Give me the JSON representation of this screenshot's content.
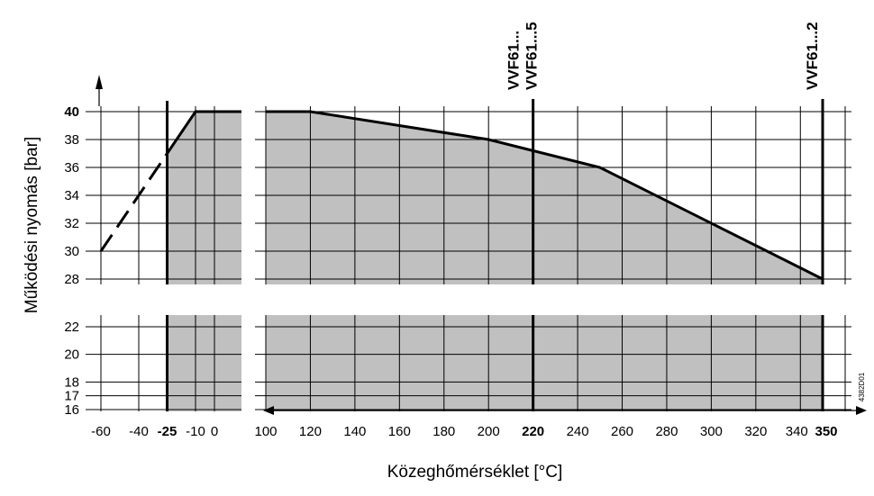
{
  "chart_data": {
    "type": "area",
    "xlabel": "Közeghőmérséklet [°C]",
    "ylabel": "Működési nyomás [bar]",
    "code": "4382D01",
    "colors": {
      "fill": "#c0c0c0",
      "line": "#000000",
      "grid": "#000000"
    },
    "grid": true,
    "left_panel": {
      "xlim": [
        -60,
        0
      ],
      "x_ticks": [
        {
          "value": -60,
          "label": "-60",
          "bold": false
        },
        {
          "value": -40,
          "label": "-40",
          "bold": false
        },
        {
          "value": -25,
          "label": "-25",
          "bold": true
        },
        {
          "value": -10,
          "label": "-10",
          "bold": false
        },
        {
          "value": 0,
          "label": "0",
          "bold": false
        }
      ],
      "shaded_from": -25,
      "dashed_line": [
        [
          -60,
          30
        ],
        [
          -25,
          37
        ]
      ],
      "solid_line": [
        [
          -25,
          37
        ],
        [
          -10,
          40
        ],
        [
          0,
          40
        ]
      ]
    },
    "right_panel": {
      "xlim": [
        100,
        350
      ],
      "x_ticks": [
        {
          "value": 100,
          "label": "100",
          "bold": false
        },
        {
          "value": 120,
          "label": "120",
          "bold": false
        },
        {
          "value": 140,
          "label": "140",
          "bold": false
        },
        {
          "value": 160,
          "label": "160",
          "bold": false
        },
        {
          "value": 180,
          "label": "180",
          "bold": false
        },
        {
          "value": 200,
          "label": "200",
          "bold": false
        },
        {
          "value": 220,
          "label": "220",
          "bold": true
        },
        {
          "value": 240,
          "label": "240",
          "bold": false
        },
        {
          "value": 260,
          "label": "260",
          "bold": false
        },
        {
          "value": 280,
          "label": "280",
          "bold": false
        },
        {
          "value": 300,
          "label": "300",
          "bold": false
        },
        {
          "value": 320,
          "label": "320",
          "bold": false
        },
        {
          "value": 340,
          "label": "340",
          "bold": false
        },
        {
          "value": 350,
          "label": "350",
          "bold": true
        }
      ],
      "line": [
        [
          100,
          40
        ],
        [
          120,
          40
        ],
        [
          200,
          38
        ],
        [
          250,
          36
        ],
        [
          350,
          28
        ]
      ]
    },
    "upper_ylim": [
      28,
      40
    ],
    "upper_y_ticks": [
      {
        "value": 28,
        "label": "28",
        "bold": false
      },
      {
        "value": 30,
        "label": "30",
        "bold": false
      },
      {
        "value": 32,
        "label": "32",
        "bold": false
      },
      {
        "value": 34,
        "label": "34",
        "bold": false
      },
      {
        "value": 36,
        "label": "36",
        "bold": false
      },
      {
        "value": 38,
        "label": "38",
        "bold": false
      },
      {
        "value": 40,
        "label": "40",
        "bold": true
      }
    ],
    "lower_ylim": [
      16,
      22
    ],
    "lower_y_ticks": [
      {
        "value": 16,
        "label": "16",
        "bold": false
      },
      {
        "value": 17,
        "label": "17",
        "bold": false
      },
      {
        "value": 18,
        "label": "18",
        "bold": false
      },
      {
        "value": 20,
        "label": "20",
        "bold": false
      },
      {
        "value": 22,
        "label": "22",
        "bold": false
      }
    ],
    "vertical_markers": [
      {
        "x": -25,
        "panel": "left",
        "labels": []
      },
      {
        "x": 220,
        "panel": "right",
        "labels": [
          "VVF61...",
          "VVF61...5"
        ]
      },
      {
        "x": 350,
        "panel": "right",
        "labels": [
          "VVF61...2"
        ]
      }
    ]
  }
}
